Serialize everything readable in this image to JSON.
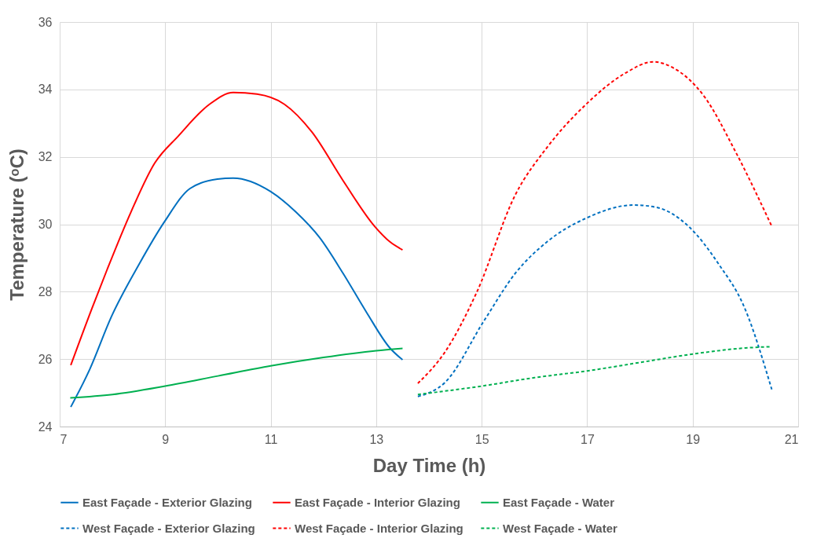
{
  "chart_data": {
    "type": "line",
    "xlabel": "Day Time (h)",
    "ylabel": "Temperature (ᵒC)",
    "xlim": [
      7,
      21
    ],
    "xticks": [
      7,
      9,
      11,
      13,
      15,
      17,
      19,
      21
    ],
    "ylim": [
      24,
      36
    ],
    "yticks": [
      24,
      26,
      28,
      30,
      32,
      34,
      36
    ],
    "grid": true,
    "legend": "bottom",
    "series": [
      {
        "name": "East Façade - Exterior Glazing",
        "color": "#0070c0",
        "line_style": "solid",
        "x": [
          7.21,
          7.57,
          7.98,
          8.5,
          8.98,
          9.47,
          9.99,
          10.29,
          11.0,
          11.48,
          11.93,
          12.37,
          12.82,
          13.26,
          13.5
        ],
        "values": [
          24.58,
          25.7,
          27.26,
          28.8,
          30.06,
          31.06,
          31.34,
          31.37,
          30.97,
          30.36,
          29.6,
          28.55,
          27.38,
          26.33,
          25.98
        ]
      },
      {
        "name": "East Façade - Interior Glazing",
        "color": "#ff0000",
        "line_style": "solid",
        "x": [
          7.21,
          7.61,
          7.9,
          8.35,
          8.8,
          9.25,
          9.84,
          10.29,
          10.74,
          11.26,
          11.78,
          12.37,
          12.97,
          13.26,
          13.5
        ],
        "values": [
          25.82,
          27.5,
          28.66,
          30.36,
          31.81,
          32.62,
          33.56,
          33.91,
          33.86,
          33.56,
          32.74,
          31.3,
          29.94,
          29.48,
          29.24
        ]
      },
      {
        "name": "East Façade - Water",
        "color": "#00b050",
        "line_style": "solid",
        "x": [
          7.2,
          8,
          9,
          10,
          11,
          12,
          13,
          13.5
        ],
        "values": [
          24.85,
          24.95,
          25.2,
          25.5,
          25.8,
          26.05,
          26.25,
          26.32
        ]
      },
      {
        "name": "West Façade - Exterior Glazing",
        "color": "#0070c0",
        "line_style": "dashed",
        "x": [
          13.79,
          14.3,
          15.05,
          15.64,
          16.24,
          16.98,
          17.88,
          18.32,
          18.92,
          19.51,
          19.96,
          20.5
        ],
        "values": [
          24.89,
          25.3,
          27.15,
          28.55,
          29.48,
          30.18,
          30.57,
          30.5,
          29.94,
          28.78,
          27.61,
          25.1
        ]
      },
      {
        "name": "West Façade - Interior Glazing",
        "color": "#ff0000",
        "line_style": "dashed",
        "x": [
          13.79,
          14.3,
          14.9,
          15.64,
          16.24,
          16.98,
          17.73,
          18.25,
          18.62,
          19.22,
          19.81,
          20.5
        ],
        "values": [
          25.28,
          26.2,
          27.96,
          30.88,
          32.28,
          33.56,
          34.49,
          34.82,
          34.65,
          33.79,
          32.16,
          29.94
        ]
      },
      {
        "name": "West Façade - Water",
        "color": "#00b050",
        "line_style": "dashed",
        "x": [
          13.79,
          15,
          16,
          17,
          18,
          19,
          20,
          20.5
        ],
        "values": [
          24.95,
          25.2,
          25.45,
          25.65,
          25.9,
          26.15,
          26.33,
          26.37
        ]
      }
    ]
  }
}
